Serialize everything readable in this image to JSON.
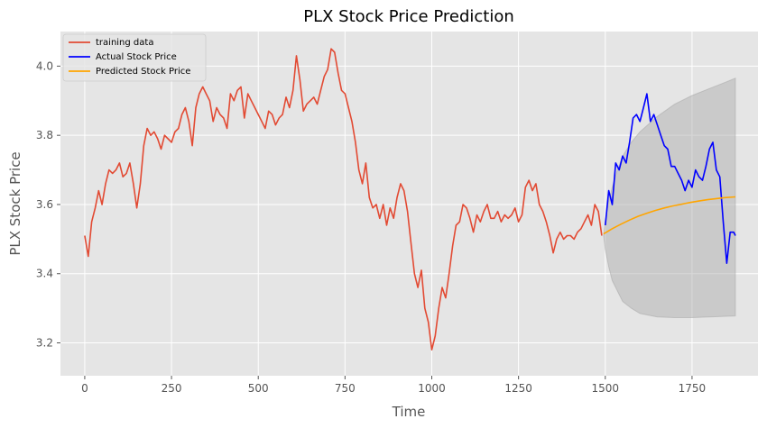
{
  "chart_data": {
    "type": "line",
    "title": "PLX Stock Price Prediction",
    "xlabel": "Time",
    "ylabel": "PLX Stock Price",
    "xlim": [
      -70,
      1940
    ],
    "ylim": [
      3.105,
      4.1
    ],
    "xticks": [
      0,
      250,
      500,
      750,
      1000,
      1250,
      1500,
      1750
    ],
    "yticks": [
      3.2,
      3.4,
      3.6,
      3.8,
      4.0
    ],
    "xtick_labels": [
      "0",
      "250",
      "500",
      "750",
      "1000",
      "1250",
      "1500",
      "1750"
    ],
    "ytick_labels": [
      "3.2",
      "3.4",
      "3.6",
      "3.8",
      "4.0"
    ],
    "grid": true,
    "style": "ggplot",
    "legend_position": "top-left",
    "series": [
      {
        "name": "training data",
        "color": "#E24A33",
        "x": [
          0,
          10,
          20,
          30,
          40,
          50,
          60,
          70,
          80,
          90,
          100,
          110,
          120,
          130,
          140,
          150,
          160,
          170,
          180,
          190,
          200,
          210,
          220,
          230,
          240,
          250,
          260,
          270,
          280,
          290,
          300,
          310,
          320,
          330,
          340,
          350,
          360,
          370,
          380,
          390,
          400,
          410,
          420,
          430,
          440,
          450,
          460,
          470,
          480,
          490,
          500,
          510,
          520,
          530,
          540,
          550,
          560,
          570,
          580,
          590,
          600,
          610,
          620,
          630,
          640,
          650,
          660,
          670,
          680,
          690,
          700,
          710,
          720,
          730,
          740,
          750,
          760,
          770,
          780,
          790,
          800,
          810,
          820,
          830,
          840,
          850,
          860,
          870,
          880,
          890,
          900,
          910,
          920,
          930,
          940,
          950,
          960,
          970,
          980,
          990,
          1000,
          1010,
          1020,
          1030,
          1040,
          1050,
          1060,
          1070,
          1080,
          1090,
          1100,
          1110,
          1120,
          1130,
          1140,
          1150,
          1160,
          1170,
          1180,
          1190,
          1200,
          1210,
          1220,
          1230,
          1240,
          1250,
          1260,
          1270,
          1280,
          1290,
          1300,
          1310,
          1320,
          1330,
          1340,
          1350,
          1360,
          1370,
          1380,
          1390,
          1400,
          1410,
          1420,
          1430,
          1440,
          1450,
          1460,
          1470,
          1480,
          1490
        ],
        "y": [
          3.51,
          3.45,
          3.55,
          3.59,
          3.64,
          3.6,
          3.66,
          3.7,
          3.69,
          3.7,
          3.72,
          3.68,
          3.69,
          3.72,
          3.66,
          3.59,
          3.66,
          3.77,
          3.82,
          3.8,
          3.81,
          3.79,
          3.76,
          3.8,
          3.79,
          3.78,
          3.81,
          3.82,
          3.86,
          3.88,
          3.84,
          3.77,
          3.88,
          3.92,
          3.94,
          3.92,
          3.9,
          3.84,
          3.88,
          3.86,
          3.85,
          3.82,
          3.92,
          3.9,
          3.93,
          3.94,
          3.85,
          3.92,
          3.9,
          3.88,
          3.86,
          3.84,
          3.82,
          3.87,
          3.86,
          3.83,
          3.85,
          3.86,
          3.91,
          3.88,
          3.93,
          4.03,
          3.96,
          3.87,
          3.89,
          3.9,
          3.91,
          3.89,
          3.93,
          3.97,
          3.99,
          4.05,
          4.04,
          3.98,
          3.93,
          3.92,
          3.88,
          3.84,
          3.78,
          3.7,
          3.66,
          3.72,
          3.62,
          3.59,
          3.6,
          3.56,
          3.6,
          3.54,
          3.59,
          3.56,
          3.62,
          3.66,
          3.64,
          3.58,
          3.49,
          3.4,
          3.36,
          3.41,
          3.3,
          3.26,
          3.18,
          3.22,
          3.3,
          3.36,
          3.33,
          3.4,
          3.48,
          3.54,
          3.55,
          3.6,
          3.59,
          3.56,
          3.52,
          3.57,
          3.55,
          3.58,
          3.6,
          3.56,
          3.56,
          3.58,
          3.55,
          3.57,
          3.56,
          3.57,
          3.59,
          3.55,
          3.57,
          3.65,
          3.67,
          3.64,
          3.66,
          3.6,
          3.58,
          3.55,
          3.51,
          3.46,
          3.5,
          3.52,
          3.5,
          3.51,
          3.51,
          3.5,
          3.52,
          3.53,
          3.55,
          3.57,
          3.54,
          3.6,
          3.58,
          3.51
        ]
      },
      {
        "name": "Actual Stock Price",
        "color": "#0000FF",
        "x": [
          1500,
          1510,
          1520,
          1530,
          1540,
          1550,
          1560,
          1570,
          1580,
          1590,
          1600,
          1610,
          1620,
          1630,
          1640,
          1650,
          1660,
          1670,
          1680,
          1690,
          1700,
          1710,
          1720,
          1730,
          1740,
          1750,
          1760,
          1770,
          1780,
          1790,
          1800,
          1810,
          1820,
          1830,
          1840,
          1850,
          1860,
          1870,
          1875
        ],
        "y": [
          3.54,
          3.64,
          3.6,
          3.72,
          3.7,
          3.74,
          3.72,
          3.78,
          3.85,
          3.86,
          3.84,
          3.88,
          3.92,
          3.84,
          3.86,
          3.83,
          3.8,
          3.77,
          3.76,
          3.71,
          3.71,
          3.69,
          3.67,
          3.64,
          3.67,
          3.65,
          3.7,
          3.68,
          3.67,
          3.71,
          3.76,
          3.78,
          3.7,
          3.68,
          3.55,
          3.43,
          3.52,
          3.52,
          3.51
        ]
      },
      {
        "name": "Predicted Stock Price",
        "color": "#FFA500",
        "x": [
          1495,
          1520,
          1545,
          1570,
          1595,
          1620,
          1645,
          1670,
          1695,
          1720,
          1745,
          1770,
          1795,
          1820,
          1845,
          1875
        ],
        "y": [
          3.515,
          3.53,
          3.543,
          3.555,
          3.566,
          3.575,
          3.583,
          3.59,
          3.596,
          3.601,
          3.606,
          3.61,
          3.614,
          3.617,
          3.62,
          3.622
        ]
      }
    ],
    "confidence_band": {
      "color": "#B0B0B0",
      "x": [
        1495,
        1500,
        1510,
        1520,
        1535,
        1550,
        1575,
        1600,
        1650,
        1700,
        1750,
        1800,
        1850,
        1875
      ],
      "upper": [
        3.51,
        3.55,
        3.61,
        3.65,
        3.7,
        3.74,
        3.78,
        3.81,
        3.855,
        3.89,
        3.915,
        3.935,
        3.955,
        3.965
      ],
      "lower": [
        3.51,
        3.47,
        3.42,
        3.38,
        3.35,
        3.32,
        3.3,
        3.285,
        3.275,
        3.273,
        3.273,
        3.275,
        3.277,
        3.278
      ]
    }
  }
}
